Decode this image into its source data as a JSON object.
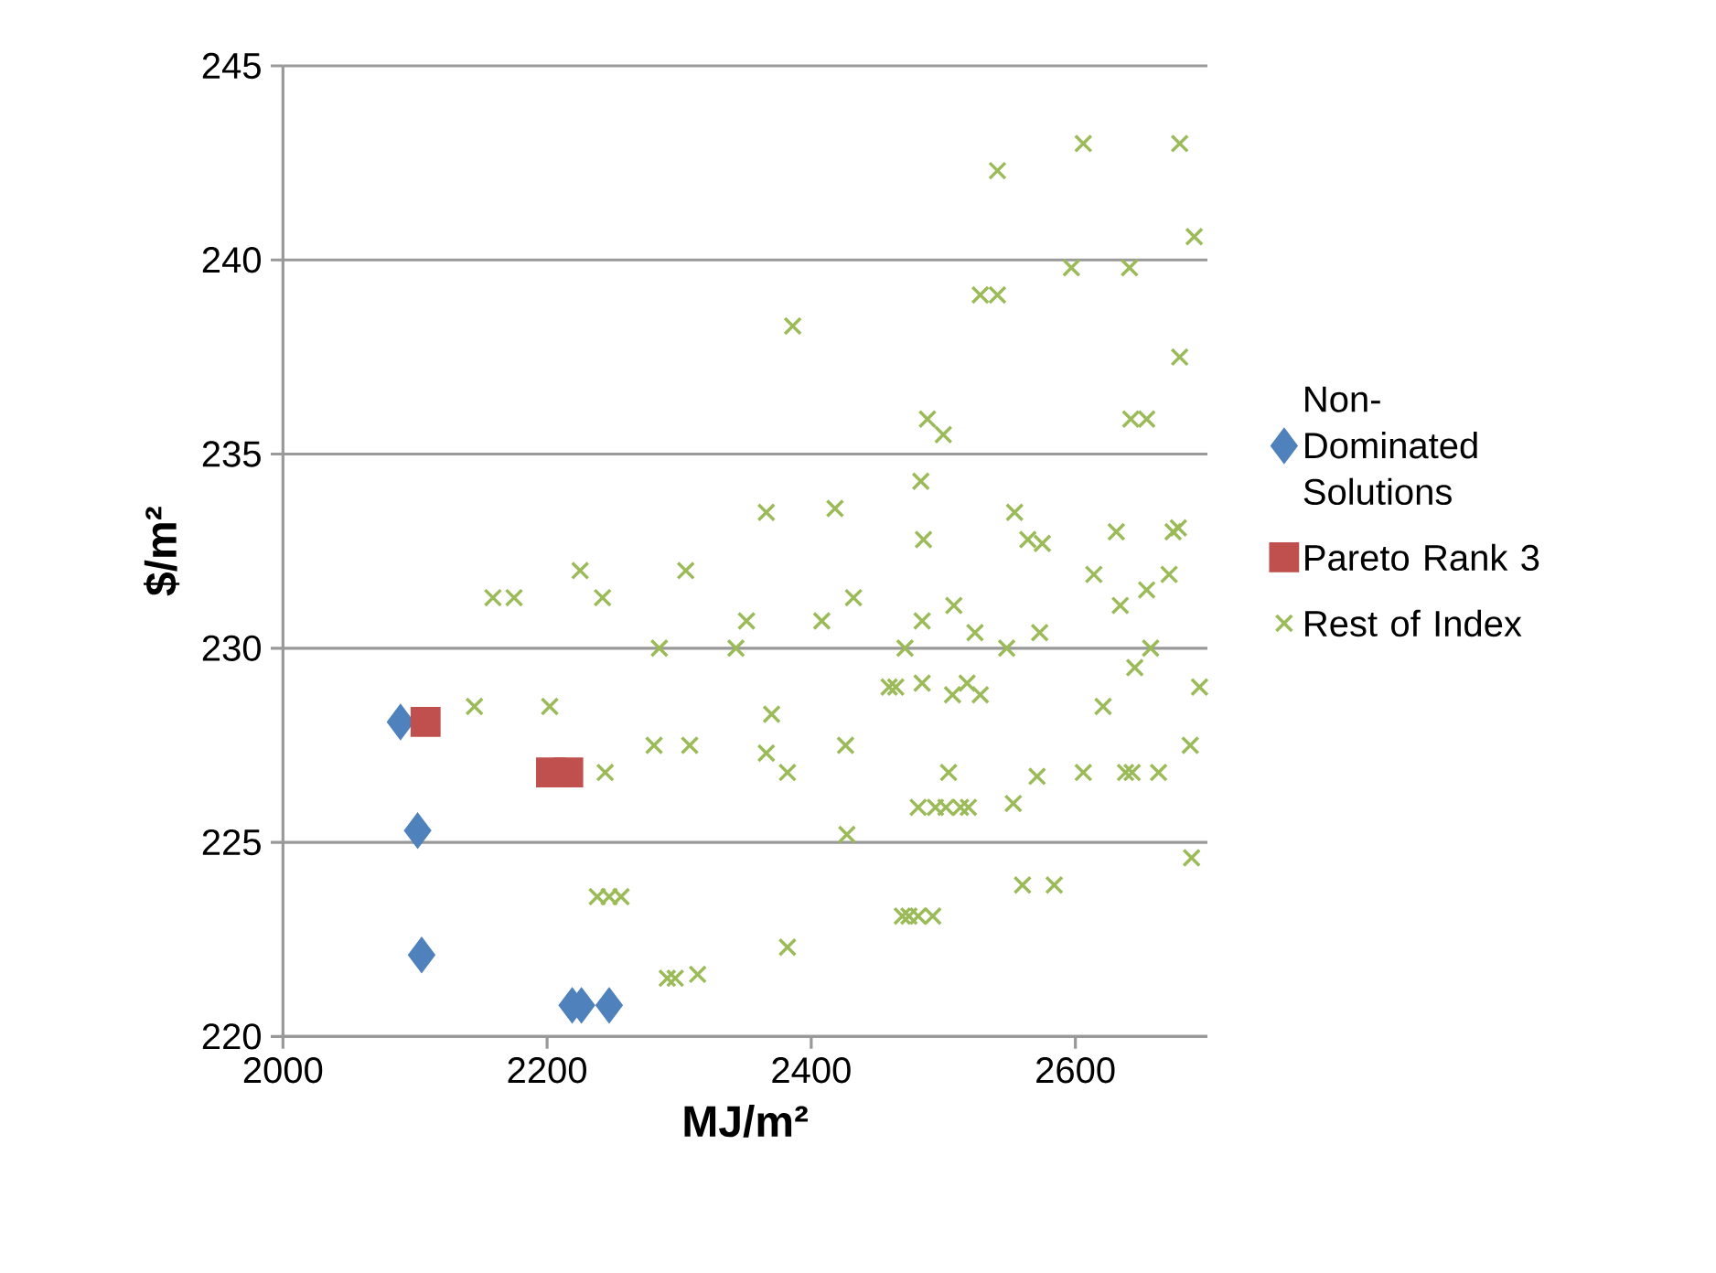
{
  "chart_data": {
    "type": "scatter",
    "xlabel": "MJ/m²",
    "ylabel": "$/m²",
    "xlim": [
      2000,
      2700
    ],
    "ylim": [
      220,
      245
    ],
    "xticks": [
      2000,
      2200,
      2400,
      2600
    ],
    "yticks": [
      220,
      225,
      230,
      235,
      240,
      245
    ],
    "grid": "y",
    "legend": "right",
    "series": [
      {
        "name": "Non-Dominated Solutions",
        "color": "#4f81bd",
        "marker": "diamond",
        "x": [
          2089,
          2102,
          2105,
          2219,
          2226,
          2247
        ],
        "values": [
          228.1,
          225.3,
          222.1,
          220.8,
          220.8,
          220.8
        ]
      },
      {
        "name": "Pareto Rank 3",
        "color": "#c0504d",
        "marker": "square",
        "x": [
          2108,
          2203,
          2216
        ],
        "values": [
          228.1,
          226.8,
          226.8
        ]
      },
      {
        "name": "Rest of Index",
        "color": "#9bbb59",
        "marker": "cross",
        "x": [
          2145,
          2202,
          2159,
          2175,
          2225,
          2242,
          2285,
          2305,
          2281,
          2308,
          2244,
          2238,
          2247,
          2256,
          2291,
          2297,
          2314,
          2351,
          2343,
          2408,
          2432,
          2484,
          2508,
          2524,
          2471,
          2548,
          2573,
          2614,
          2634,
          2654,
          2671,
          2657,
          2645,
          2694,
          2621,
          2459,
          2464,
          2484,
          2507,
          2518,
          2528,
          2370,
          2366,
          2382,
          2426,
          2687,
          2504,
          2571,
          2606,
          2638,
          2643,
          2663,
          2481,
          2494,
          2502,
          2513,
          2519,
          2553,
          2427,
          2688,
          2560,
          2584,
          2469,
          2474,
          2481,
          2492,
          2382,
          2541,
          2606,
          2679,
          2690,
          2597,
          2641,
          2528,
          2541,
          2386,
          2679,
          2488,
          2500,
          2642,
          2654,
          2483,
          2366,
          2418,
          2554,
          2564,
          2575,
          2485,
          2631,
          2674,
          2678
        ],
        "values": [
          228.5,
          228.5,
          231.3,
          231.3,
          232.0,
          231.3,
          230.0,
          232.0,
          227.5,
          227.5,
          226.8,
          223.6,
          223.6,
          223.6,
          221.5,
          221.5,
          221.6,
          230.7,
          230.0,
          230.7,
          231.3,
          230.7,
          231.1,
          230.4,
          230.0,
          230.0,
          230.4,
          231.9,
          231.1,
          231.5,
          231.9,
          230.0,
          229.5,
          229.0,
          228.5,
          229.0,
          229.0,
          229.1,
          228.8,
          229.1,
          228.8,
          228.3,
          227.3,
          226.8,
          227.5,
          227.5,
          226.8,
          226.7,
          226.8,
          226.8,
          226.8,
          226.8,
          225.9,
          225.9,
          225.9,
          225.9,
          225.9,
          226.0,
          225.2,
          224.6,
          223.9,
          223.9,
          223.1,
          223.1,
          223.1,
          223.1,
          222.3,
          242.3,
          243.0,
          243.0,
          240.6,
          239.8,
          239.8,
          239.1,
          239.1,
          238.3,
          237.5,
          235.9,
          235.5,
          235.9,
          235.9,
          234.3,
          233.5,
          233.6,
          233.5,
          232.8,
          232.7,
          232.8,
          233.0,
          233.0,
          233.1
        ]
      }
    ]
  }
}
